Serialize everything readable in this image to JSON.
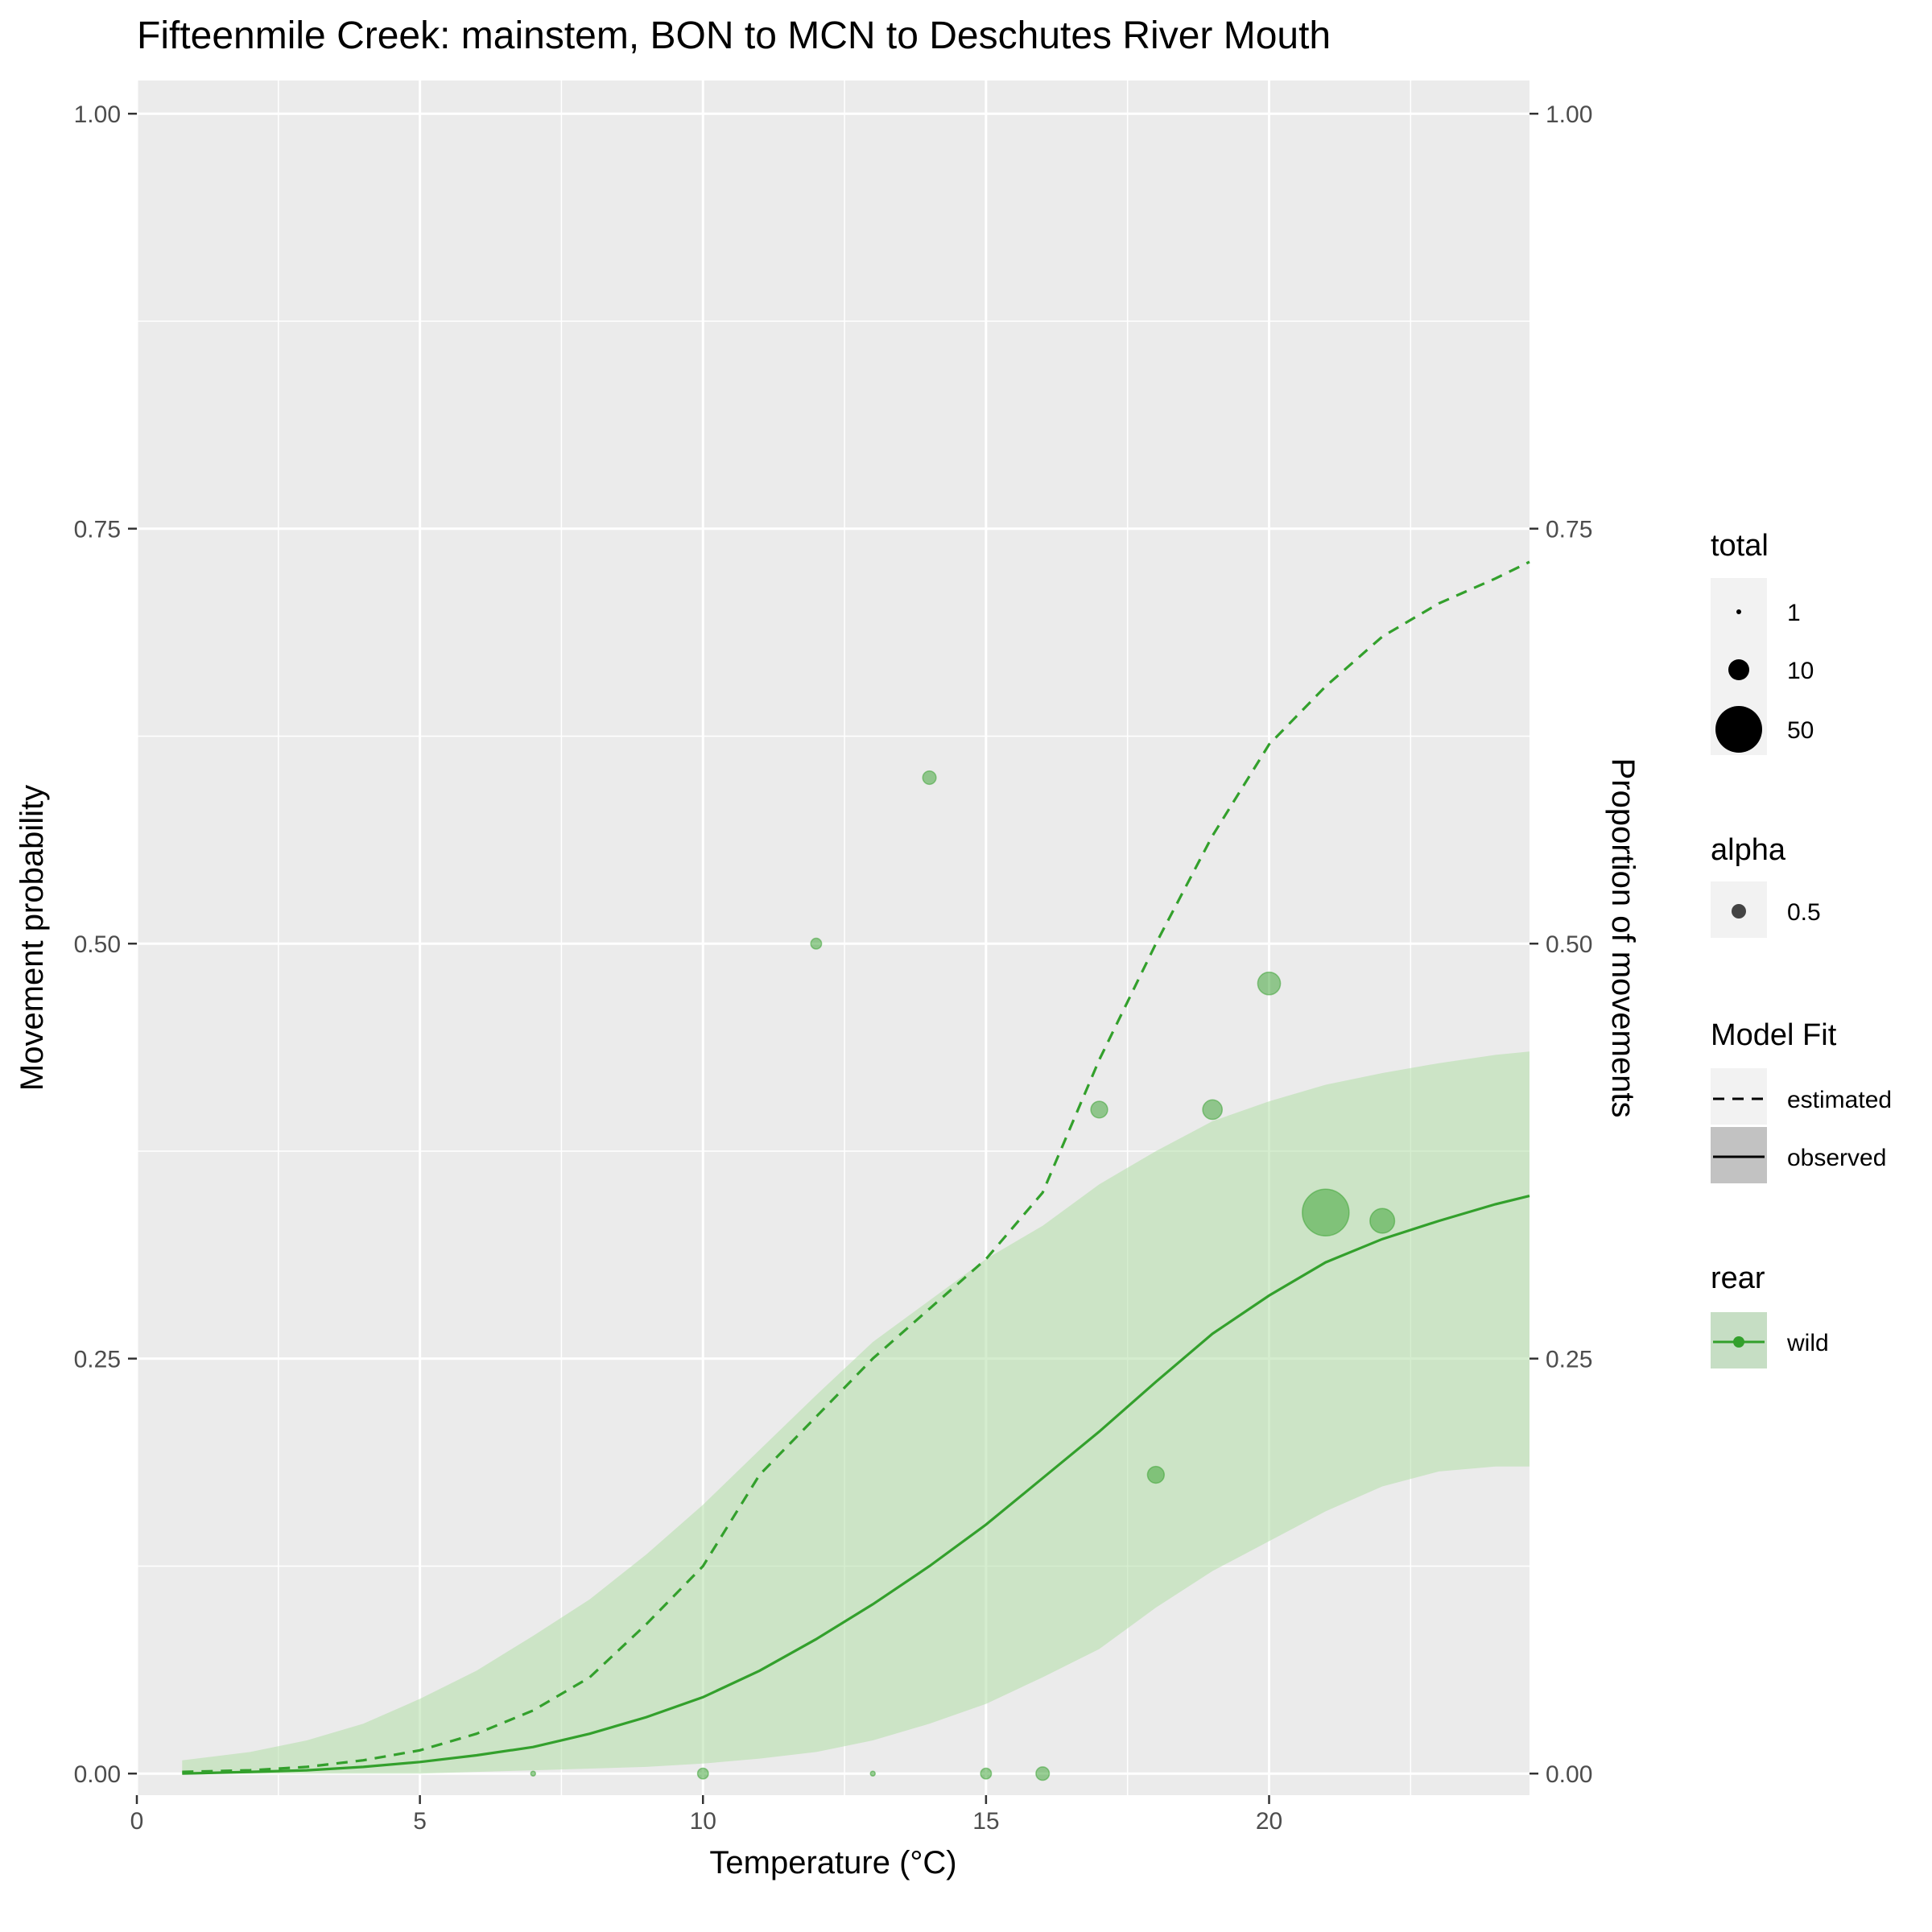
{
  "chart_data": {
    "type": "line",
    "title": "Fifteenmile Creek: mainstem, BON to MCN to Deschutes River Mouth",
    "xlabel": "Temperature (°C)",
    "ylabel": "Movement probability",
    "y2label": "Proportion of movements",
    "xlim": [
      0,
      24.6
    ],
    "ylim": [
      -0.013,
      1.02
    ],
    "x_ticks": [
      0,
      5,
      10,
      15,
      20
    ],
    "x_tick_labels": [
      "0",
      "5",
      "10",
      "15",
      "20"
    ],
    "y_ticks": [
      0,
      0.25,
      0.5,
      0.75,
      1
    ],
    "y_tick_labels": [
      "0.00",
      "0.25",
      "0.50",
      "0.75",
      "1.00"
    ],
    "grid": true,
    "legend_position": "right",
    "colors": {
      "series": "#33a02c",
      "ribbon": "#b2dfa8",
      "points": "#33a02c",
      "panel": "#ebebeb",
      "grid": "#ffffff"
    },
    "series": [
      {
        "name": "estimated",
        "linetype": "dashed",
        "x": [
          0.8,
          2,
          3,
          4,
          5,
          6,
          7,
          8,
          9,
          10,
          11,
          12,
          13,
          14,
          15,
          16,
          17,
          18,
          19,
          20,
          21,
          22,
          23,
          24,
          24.6
        ],
        "y": [
          0.001,
          0.002,
          0.004,
          0.008,
          0.014,
          0.024,
          0.038,
          0.058,
          0.09,
          0.125,
          0.18,
          0.215,
          0.25,
          0.28,
          0.31,
          0.35,
          0.43,
          0.5,
          0.565,
          0.62,
          0.655,
          0.685,
          0.705,
          0.72,
          0.73
        ]
      },
      {
        "name": "observed",
        "linetype": "solid",
        "x": [
          0.8,
          2,
          3,
          4,
          5,
          6,
          7,
          8,
          9,
          10,
          11,
          12,
          13,
          14,
          15,
          16,
          17,
          18,
          19,
          20,
          21,
          22,
          23,
          24,
          24.6
        ],
        "y": [
          0.0,
          0.001,
          0.002,
          0.004,
          0.007,
          0.011,
          0.016,
          0.024,
          0.034,
          0.046,
          0.062,
          0.081,
          0.102,
          0.125,
          0.15,
          0.178,
          0.206,
          0.236,
          0.265,
          0.288,
          0.308,
          0.322,
          0.333,
          0.343,
          0.348
        ]
      }
    ],
    "ribbon": {
      "name": "wild",
      "x": [
        0.8,
        2,
        3,
        4,
        5,
        6,
        7,
        8,
        9,
        10,
        11,
        12,
        13,
        14,
        15,
        16,
        17,
        18,
        19,
        20,
        21,
        22,
        23,
        24,
        24.6
      ],
      "lower": [
        0.0,
        0.0,
        0.0,
        0.0,
        0.0,
        0.001,
        0.002,
        0.003,
        0.004,
        0.006,
        0.009,
        0.013,
        0.02,
        0.03,
        0.042,
        0.058,
        0.075,
        0.1,
        0.122,
        0.14,
        0.158,
        0.173,
        0.182,
        0.185,
        0.185
      ],
      "upper": [
        0.008,
        0.013,
        0.02,
        0.03,
        0.045,
        0.062,
        0.083,
        0.105,
        0.132,
        0.162,
        0.195,
        0.228,
        0.26,
        0.285,
        0.31,
        0.33,
        0.355,
        0.375,
        0.393,
        0.405,
        0.415,
        0.422,
        0.428,
        0.433,
        0.435
      ]
    },
    "points": {
      "name": "wild",
      "alpha": 0.5,
      "x": [
        7,
        10,
        12,
        13,
        14,
        15,
        16,
        17,
        18,
        19,
        20,
        21,
        22
      ],
      "y": [
        0,
        0,
        0.5,
        0,
        0.6,
        0,
        0,
        0.4,
        0.18,
        0.4,
        0.476,
        0.338,
        0.333
      ],
      "total": [
        1,
        2,
        2,
        1,
        3,
        2,
        3,
        5,
        5,
        7,
        10,
        50,
        12
      ]
    },
    "legends": {
      "total": {
        "title": "total",
        "labels": [
          "1",
          "10",
          "50"
        ],
        "values": [
          1,
          10,
          50
        ]
      },
      "alpha": {
        "title": "alpha",
        "labels": [
          "0.5"
        ]
      },
      "model_fit": {
        "title": "Model Fit",
        "labels": [
          "estimated",
          "observed"
        ]
      },
      "rear": {
        "title": "rear",
        "labels": [
          "wild"
        ]
      }
    }
  }
}
